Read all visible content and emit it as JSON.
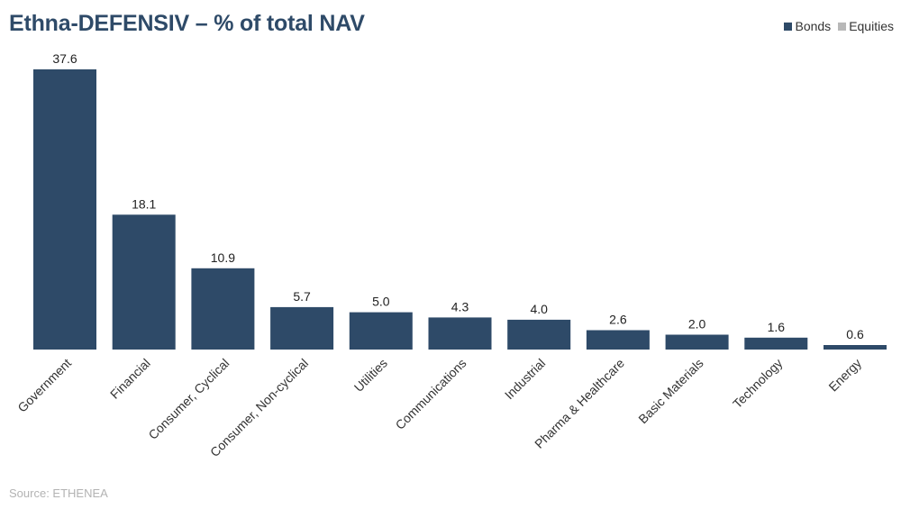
{
  "title": "Ethna-DEFENSIV – % of total NAV",
  "source": "Source: ETHENEA",
  "legend": [
    {
      "name": "Bonds",
      "color": "#2e4a68"
    },
    {
      "name": "Equities",
      "color": "#b8b8b8"
    }
  ],
  "chart_data": {
    "type": "bar",
    "title": "Ethna-DEFENSIV – % of total NAV",
    "categories": [
      "Government",
      "Financial",
      "Consumer, Cyclical",
      "Consumer, Non-cyclical",
      "Utilities",
      "Communications",
      "Industrial",
      "Pharma & Healthcare",
      "Basic Materials",
      "Technology",
      "Energy"
    ],
    "series": [
      {
        "name": "Bonds",
        "color": "#2e4a68",
        "values": [
          37.6,
          18.1,
          10.9,
          5.7,
          5.0,
          4.3,
          4.0,
          2.6,
          2.0,
          1.6,
          0.6
        ],
        "labels": [
          "37.6",
          "18.1",
          "10.9",
          "5.7",
          "5.0",
          "4.3",
          "4.0",
          "2.6",
          "2.0",
          "1.6",
          "0.6"
        ]
      },
      {
        "name": "Equities",
        "color": "#b8b8b8",
        "values": [
          0,
          0,
          0,
          0,
          0,
          0,
          0,
          0,
          0,
          0,
          0
        ]
      }
    ],
    "ylim": [
      0,
      37.6
    ],
    "grid": false,
    "legend_position": "top-right"
  }
}
